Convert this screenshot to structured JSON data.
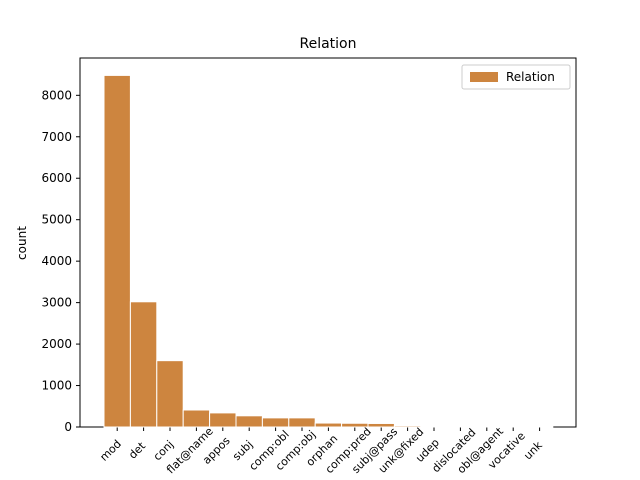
{
  "chart_data": {
    "type": "bar",
    "title": "Relation",
    "y_label": "count",
    "categories": [
      "mod",
      "det",
      "conj",
      "flat@name",
      "appos",
      "subj",
      "comp:obl",
      "comp:obj",
      "orphan",
      "comp:pred",
      "subj@pass",
      "unk@fixed",
      "udep",
      "dislocated",
      "obl@agent",
      "vocative",
      "unk"
    ],
    "series": [
      {
        "name": "Relation",
        "color": "#cd853f",
        "values": [
          8480,
          3020,
          1600,
          410,
          340,
          270,
          220,
          220,
          95,
          90,
          85,
          30,
          10,
          5,
          3,
          2,
          1
        ]
      }
    ],
    "ylim": [
      0,
      8900
    ],
    "yticks": [
      0,
      1000,
      2000,
      3000,
      4000,
      5000,
      6000,
      7000,
      8000
    ],
    "legend": "upper right"
  }
}
